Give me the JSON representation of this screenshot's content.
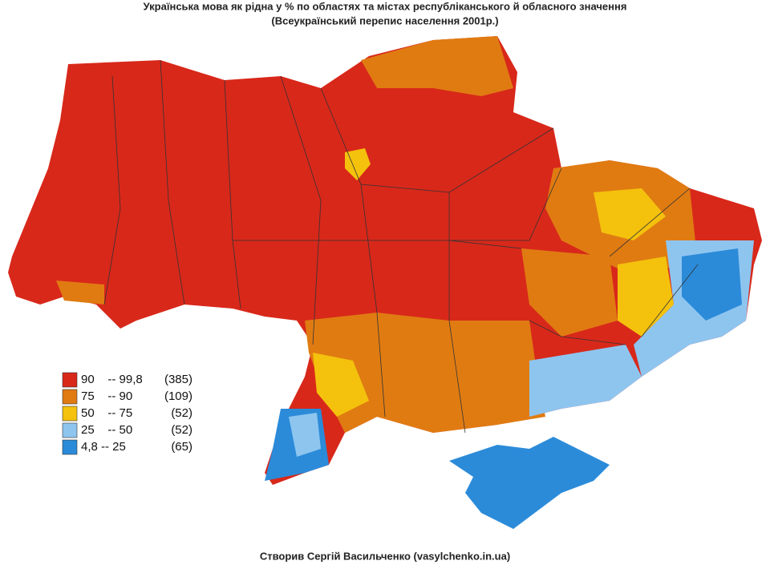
{
  "header": {
    "title": "Українська мова як рідна у % по областях та містах республіканського й обласного значення",
    "subtitle": "(Всеукраїнський перепис населення 2001р.)"
  },
  "legend": [
    {
      "color": "#d8281a",
      "label": "90    -- 99,8",
      "count": "(385)"
    },
    {
      "color": "#e07b12",
      "label": "75    -- 90",
      "count": "(109)"
    },
    {
      "color": "#f4c20d",
      "label": "50    -- 75",
      "count": "(52)"
    },
    {
      "color": "#8ec5ef",
      "label": "25    -- 50",
      "count": "(52)"
    },
    {
      "color": "#2b8bd9",
      "label": "4,8 -- 25",
      "count": "(65)"
    }
  ],
  "footer": {
    "credit": "Створив Сергій Васильченко (vasylchenko.in.ua)"
  }
}
